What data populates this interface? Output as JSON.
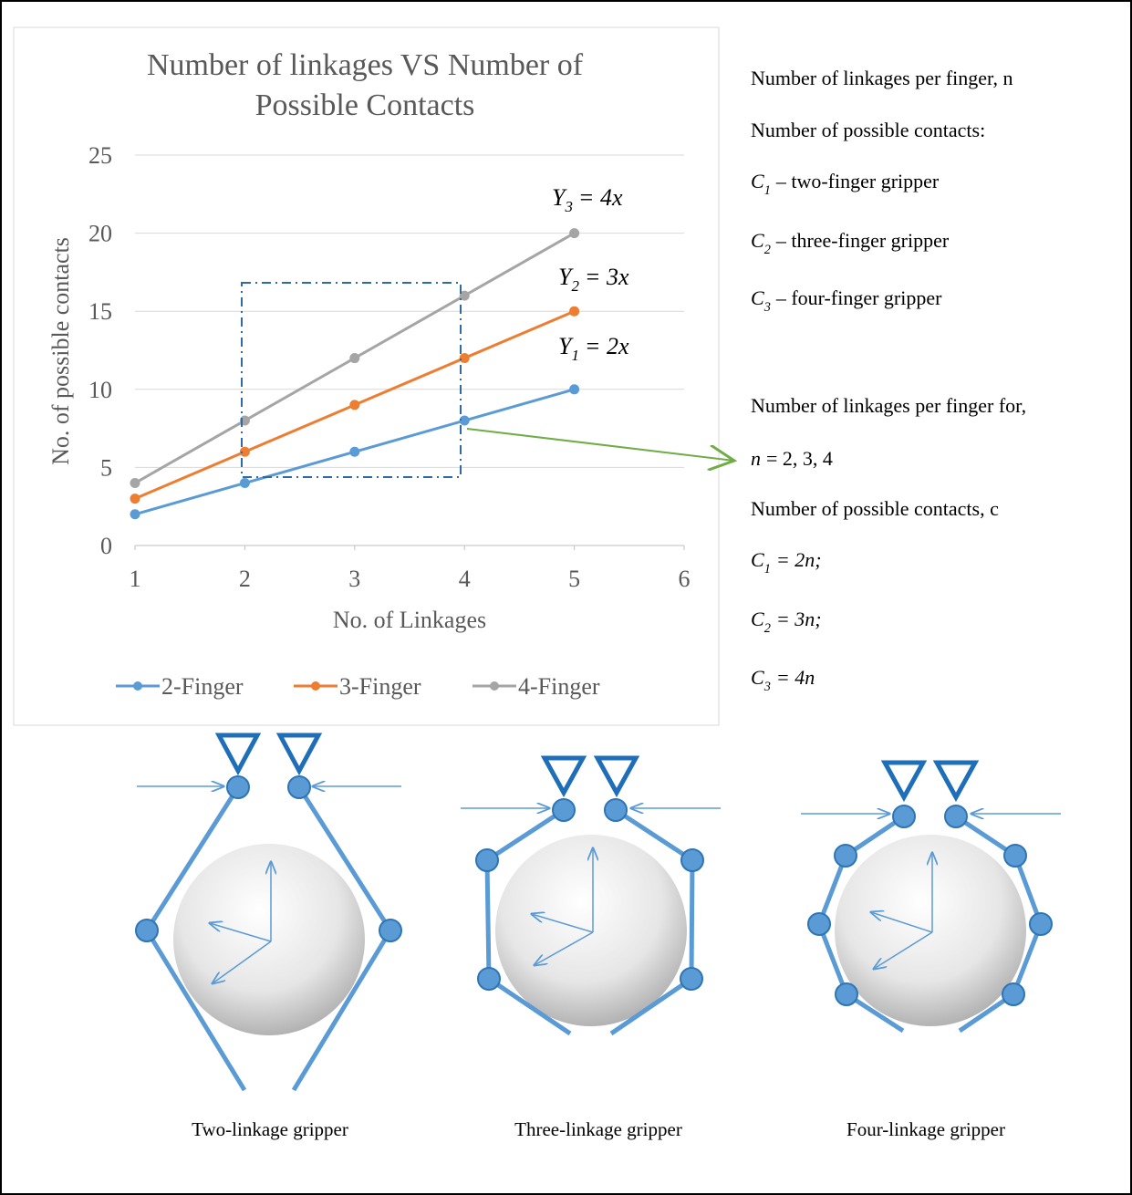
{
  "chart_data": {
    "type": "line",
    "title": "Number of linkages VS Number of Possible Contacts",
    "x_label": "No. of Linkages",
    "y_label": "No. of possible contacts",
    "x": [
      1,
      2,
      3,
      4,
      5
    ],
    "series": [
      {
        "name": "2-Finger",
        "color": "#5b9bd5",
        "values": [
          2,
          4,
          6,
          8,
          10
        ]
      },
      {
        "name": "3-Finger",
        "color": "#ed7d31",
        "values": [
          3,
          6,
          9,
          12,
          15
        ]
      },
      {
        "name": "4-Finger",
        "color": "#a5a5a5",
        "values": [
          4,
          8,
          12,
          16,
          20
        ]
      }
    ],
    "xlim": [
      1,
      6
    ],
    "xticks": [
      1,
      2,
      3,
      4,
      5,
      6
    ],
    "ylim": [
      0,
      25
    ],
    "yticks": [
      0,
      5,
      10,
      15,
      20,
      25
    ],
    "grid": true,
    "legend": "bottom",
    "annotations": [
      {
        "symbol": "Y",
        "sub": "3",
        "text": "= 4x"
      },
      {
        "symbol": "Y",
        "sub": "2",
        "text": "= 3x"
      },
      {
        "symbol": "Y",
        "sub": "1",
        "text": "= 2x"
      }
    ]
  },
  "side_text": [
    {
      "text": "Number of linkages per finger, n"
    },
    {
      "text": "Number of possible contacts:"
    },
    {
      "symbol": "C",
      "sub": "1",
      "text": "– two-finger gripper"
    },
    {
      "symbol": "C",
      "sub": "2",
      "text": "– three-finger gripper"
    },
    {
      "symbol": "C",
      "sub": "3",
      "text": "– four-finger gripper"
    },
    {
      "text": "Number of linkages per finger for,"
    },
    {
      "symbol": "n",
      "text": "= 2, 3, 4"
    },
    {
      "text": "Number of possible contacts, c"
    },
    {
      "symbol": "C",
      "sub": "1",
      "text": "= 2n;"
    },
    {
      "symbol": "C",
      "sub": "2",
      "text": "= 3n;"
    },
    {
      "symbol": "C",
      "sub": "3",
      "text": "= 4n"
    }
  ],
  "diagrams": [
    {
      "label": "Two-linkage gripper"
    },
    {
      "label": "Three-linkage gripper"
    },
    {
      "label": "Four-linkage gripper"
    }
  ]
}
